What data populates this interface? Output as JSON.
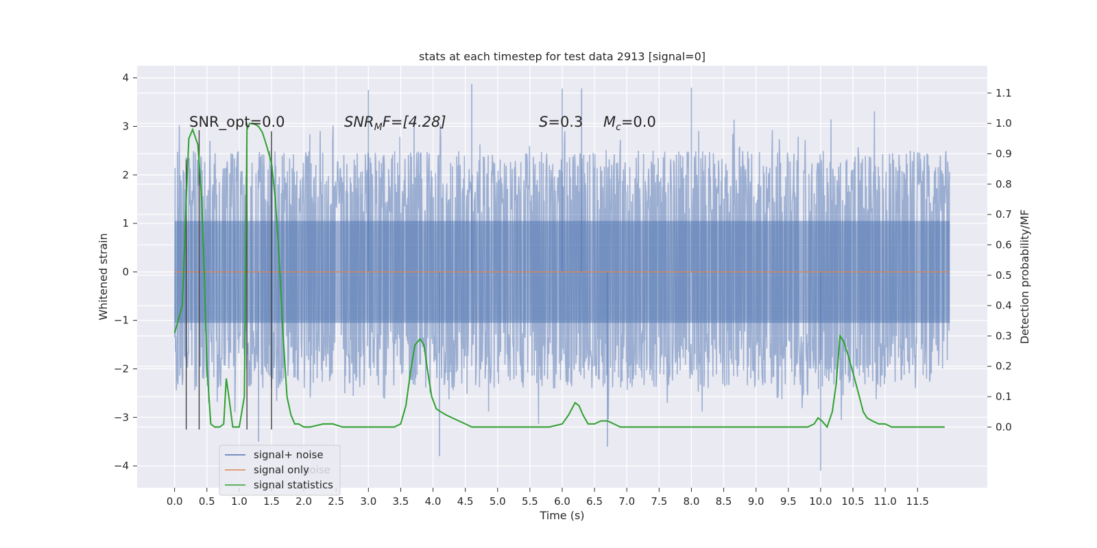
{
  "chart_data": {
    "type": "line",
    "title": "stats at each timestep for test data 2913 [signal=0]",
    "xlabel": "Time (s)",
    "ylabel": "Whitened strain",
    "ylabel_right": "Detection probability/MF",
    "xlim": [
      -0.58,
      12.58
    ],
    "ylim": [
      -4.45,
      4.25
    ],
    "ylim_right": [
      -0.2,
      1.19
    ],
    "grid": true,
    "x_ticks": [
      "0.0",
      "0.5",
      "1.0",
      "1.5",
      "2.0",
      "2.5",
      "3.0",
      "3.5",
      "4.0",
      "4.5",
      "5.0",
      "5.5",
      "6.0",
      "6.5",
      "7.0",
      "7.5",
      "8.0",
      "8.5",
      "9.0",
      "9.5",
      "10.0",
      "10.5",
      "11.0",
      "11.5"
    ],
    "y_ticks": [
      "4",
      "3",
      "2",
      "1",
      "0",
      "−1",
      "−2",
      "−3",
      "−4"
    ],
    "y_ticks_right": [
      "1.1",
      "1.0",
      "0.9",
      "0.8",
      "0.7",
      "0.6",
      "0.5",
      "0.4",
      "0.3",
      "0.2",
      "0.1",
      "0.0"
    ],
    "legend": {
      "position": "lower-left",
      "entries": [
        {
          "label": "signal+ noise",
          "color": "#4c72b0"
        },
        {
          "label": "signal only",
          "color": "#dd8452"
        },
        {
          "label": "signal statistics",
          "color": "#2ca02c"
        }
      ],
      "overlap_text": "noise"
    },
    "annotations": {
      "snr_opt": "SNR_opt=0.0",
      "snr_mf_var": "SNR",
      "snr_mf_sub": "M",
      "snr_mf_rest": "F=[4.28]",
      "s_var": "S",
      "s_rest": "=0.3",
      "mc_var": "M",
      "mc_sub": "c",
      "mc_rest": "=0.0"
    },
    "series": [
      {
        "name": "signal+ noise",
        "color": "#4c72b0",
        "x_range": [
          0.0,
          12.0
        ],
        "envelope_upper_typical": 2.5,
        "envelope_lower_typical": -2.4,
        "spikes": [
          {
            "x": 4.6,
            "y": 3.87
          },
          {
            "x": 3.0,
            "y": 3.75
          },
          {
            "x": 6.0,
            "y": 3.78
          },
          {
            "x": 6.3,
            "y": 3.78
          },
          {
            "x": 8.0,
            "y": 3.8
          },
          {
            "x": 4.1,
            "y": -3.8
          },
          {
            "x": 10.0,
            "y": -4.1
          },
          {
            "x": 6.7,
            "y": -3.6
          },
          {
            "x": 1.3,
            "y": -3.5
          }
        ]
      },
      {
        "name": "signal only",
        "color": "#dd8452",
        "x": [
          0.0,
          12.0
        ],
        "y": [
          0.0,
          0.0
        ]
      },
      {
        "name": "signal statistics",
        "color": "#2ca02c",
        "axis": "right",
        "x": [
          0.0,
          0.12,
          0.18,
          0.22,
          0.28,
          0.36,
          0.42,
          0.46,
          0.5,
          0.56,
          0.62,
          0.7,
          0.76,
          0.8,
          0.84,
          0.9,
          1.0,
          1.08,
          1.12,
          1.16,
          1.22,
          1.3,
          1.36,
          1.42,
          1.5,
          1.56,
          1.62,
          1.68,
          1.74,
          1.8,
          1.86,
          1.92,
          2.0,
          2.1,
          2.3,
          2.45,
          2.6,
          2.8,
          3.0,
          3.2,
          3.4,
          3.5,
          3.58,
          3.65,
          3.72,
          3.8,
          3.86,
          3.92,
          3.98,
          4.05,
          4.12,
          4.2,
          4.3,
          4.4,
          4.5,
          4.6,
          4.8,
          5.0,
          5.5,
          5.8,
          6.0,
          6.1,
          6.2,
          6.26,
          6.32,
          6.4,
          6.5,
          6.6,
          6.7,
          6.8,
          6.9,
          7.0,
          7.5,
          8.0,
          8.5,
          9.0,
          9.5,
          9.8,
          9.9,
          9.96,
          10.02,
          10.1,
          10.18,
          10.24,
          10.3,
          10.36,
          10.42,
          10.5,
          10.6,
          10.66,
          10.72,
          10.8,
          10.9,
          11.0,
          11.1,
          11.3,
          11.6,
          11.92
        ],
        "y": [
          0.31,
          0.4,
          0.75,
          0.95,
          0.98,
          0.93,
          0.75,
          0.5,
          0.2,
          0.01,
          0.0,
          0.0,
          0.01,
          0.16,
          0.1,
          0.0,
          0.0,
          0.1,
          0.98,
          1.0,
          1.0,
          0.99,
          0.97,
          0.93,
          0.87,
          0.75,
          0.55,
          0.3,
          0.1,
          0.04,
          0.01,
          0.01,
          0.0,
          0.0,
          0.01,
          0.01,
          0.0,
          0.0,
          0.0,
          0.0,
          0.0,
          0.01,
          0.07,
          0.18,
          0.27,
          0.29,
          0.27,
          0.18,
          0.1,
          0.06,
          0.05,
          0.04,
          0.03,
          0.02,
          0.01,
          0.0,
          0.0,
          0.0,
          0.0,
          0.0,
          0.01,
          0.04,
          0.08,
          0.07,
          0.04,
          0.01,
          0.01,
          0.02,
          0.02,
          0.01,
          0.0,
          0.0,
          0.0,
          0.0,
          0.0,
          0.0,
          0.0,
          0.0,
          0.01,
          0.03,
          0.02,
          0.0,
          0.05,
          0.14,
          0.3,
          0.28,
          0.24,
          0.18,
          0.1,
          0.05,
          0.03,
          0.02,
          0.01,
          0.01,
          0.0,
          0.0,
          0.0,
          0.0
        ]
      }
    ],
    "vertical_markers": {
      "color": "#404040",
      "x": [
        0.18,
        0.38,
        1.12,
        1.5
      ],
      "y_top": [
        2.32,
        2.92,
        3.07,
        2.9
      ],
      "y_bottom": -3.25
    }
  }
}
